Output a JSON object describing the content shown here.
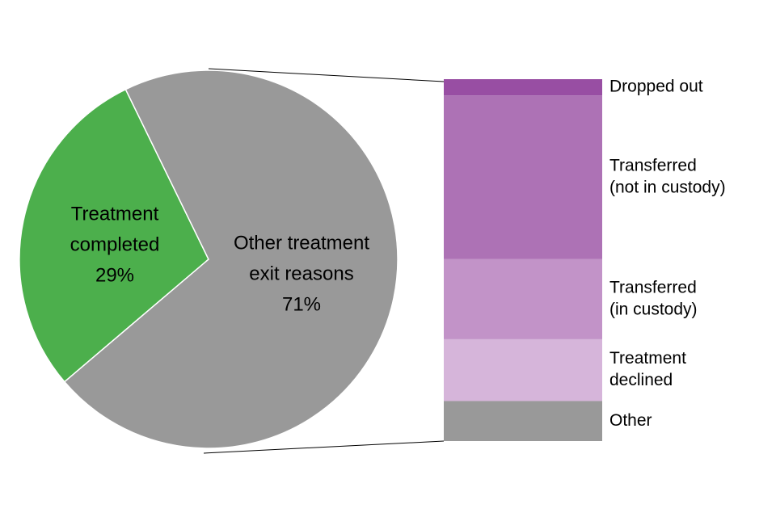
{
  "chart_data": {
    "type": "pie",
    "pie": {
      "slices": [
        {
          "label_lines": [
            "Treatment",
            "completed"
          ],
          "value_label": "29%",
          "value": 29,
          "color": "#4caf4c"
        },
        {
          "label_lines": [
            "Other treatment",
            "exit reasons"
          ],
          "value_label": "71%",
          "value": 71,
          "color": "#999999"
        }
      ]
    },
    "breakdown": {
      "type": "stacked-bar",
      "segments": [
        {
          "label_lines": [
            "Dropped out"
          ],
          "value": 4.5,
          "color": "#984ea3"
        },
        {
          "label_lines": [
            "Transferred",
            "(not in custody)"
          ],
          "value": 45,
          "color": "#ad72b5"
        },
        {
          "label_lines": [
            "Transferred",
            "(in custody)"
          ],
          "value": 22,
          "color": "#c293c8"
        },
        {
          "label_lines": [
            "Treatment",
            "declined"
          ],
          "value": 17,
          "color": "#d6b5da"
        },
        {
          "label_lines": [
            "Other"
          ],
          "value": 11,
          "color": "#999999"
        }
      ]
    }
  }
}
